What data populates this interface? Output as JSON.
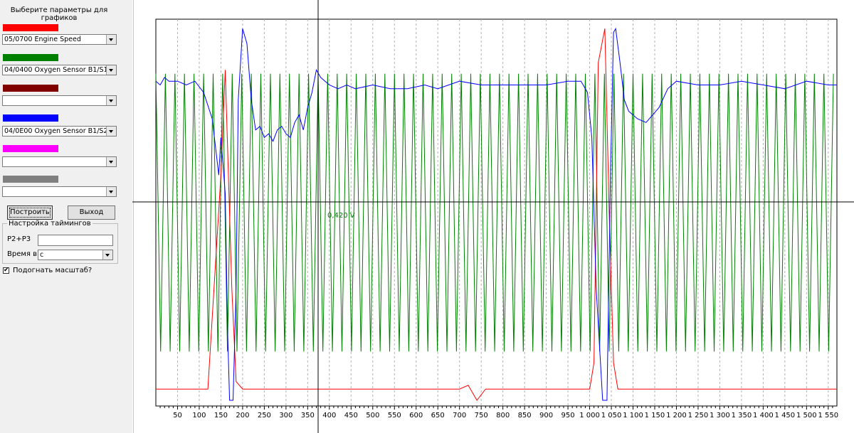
{
  "panel": {
    "title": "Выберите параметры для графиков",
    "params": [
      {
        "color": "#ff0000",
        "value": "05/0700 Engine Speed"
      },
      {
        "color": "#008000",
        "value": "04/0400 Oxygen Sensor B1/S1"
      },
      {
        "color": "#800000",
        "value": ""
      },
      {
        "color": "#0000ff",
        "value": "04/0E00 Oxygen Sensor B1/S2"
      },
      {
        "color": "#ff00ff",
        "value": ""
      },
      {
        "color": "#808080",
        "value": ""
      }
    ],
    "build_button": "Построить",
    "exit_button": "Выход",
    "timings": {
      "title": "Настройка таймингов",
      "p2p3_label": "P2+P3",
      "p2p3_value": "",
      "time_label": "Время в",
      "time_value": "с"
    },
    "fit_scale": {
      "label": "Подогнать масштаб?",
      "checked": true
    }
  },
  "chart_data": {
    "type": "line",
    "xlim": [
      0,
      1570
    ],
    "x_ticks": [
      "50",
      "100",
      "150",
      "200",
      "250",
      "300",
      "350",
      "400",
      "450",
      "500",
      "550",
      "600",
      "650",
      "700",
      "750",
      "800",
      "850",
      "900",
      "950",
      "1 000",
      "1 050",
      "1 100",
      "1 150",
      "1 200",
      "1 250",
      "1 300",
      "1 350",
      "1 400",
      "1 450",
      "1 500",
      "1 550"
    ],
    "cursor_label": "0,420 V",
    "grid": "vertical dashed",
    "series": [
      {
        "name": "05/0700 Engine Speed",
        "color": "#ff0000",
        "points": [
          [
            0,
            0.03
          ],
          [
            100,
            0.03
          ],
          [
            120,
            0.03
          ],
          [
            150,
            0.6
          ],
          [
            160,
            0.88
          ],
          [
            175,
            0.3
          ],
          [
            185,
            0.05
          ],
          [
            200,
            0.03
          ],
          [
            300,
            0.03
          ],
          [
            500,
            0.03
          ],
          [
            700,
            0.03
          ],
          [
            720,
            0.04
          ],
          [
            740,
            0.0
          ],
          [
            760,
            0.03
          ],
          [
            900,
            0.03
          ],
          [
            1000,
            0.03
          ],
          [
            1010,
            0.1
          ],
          [
            1020,
            0.9
          ],
          [
            1035,
            0.99
          ],
          [
            1045,
            0.5
          ],
          [
            1055,
            0.1
          ],
          [
            1065,
            0.03
          ],
          [
            1200,
            0.03
          ],
          [
            1400,
            0.03
          ],
          [
            1570,
            0.03
          ]
        ]
      },
      {
        "name": "04/0E00 Oxygen Sensor B1/S2",
        "color": "#0000ff",
        "points": [
          [
            0,
            0.85
          ],
          [
            10,
            0.84
          ],
          [
            20,
            0.86
          ],
          [
            30,
            0.85
          ],
          [
            50,
            0.85
          ],
          [
            70,
            0.84
          ],
          [
            90,
            0.85
          ],
          [
            110,
            0.82
          ],
          [
            130,
            0.75
          ],
          [
            145,
            0.6
          ],
          [
            150,
            0.7
          ],
          [
            160,
            0.55
          ],
          [
            165,
            0.2
          ],
          [
            170,
            0.0
          ],
          [
            178,
            0.0
          ],
          [
            185,
            0.3
          ],
          [
            190,
            0.8
          ],
          [
            200,
            0.99
          ],
          [
            210,
            0.95
          ],
          [
            220,
            0.8
          ],
          [
            230,
            0.72
          ],
          [
            240,
            0.73
          ],
          [
            250,
            0.7
          ],
          [
            260,
            0.71
          ],
          [
            270,
            0.69
          ],
          [
            280,
            0.72
          ],
          [
            290,
            0.73
          ],
          [
            300,
            0.71
          ],
          [
            310,
            0.7
          ],
          [
            320,
            0.74
          ],
          [
            330,
            0.76
          ],
          [
            340,
            0.72
          ],
          [
            350,
            0.78
          ],
          [
            360,
            0.82
          ],
          [
            370,
            0.88
          ],
          [
            380,
            0.86
          ],
          [
            400,
            0.84
          ],
          [
            420,
            0.83
          ],
          [
            440,
            0.84
          ],
          [
            460,
            0.83
          ],
          [
            500,
            0.84
          ],
          [
            540,
            0.83
          ],
          [
            580,
            0.83
          ],
          [
            620,
            0.84
          ],
          [
            650,
            0.83
          ],
          [
            700,
            0.85
          ],
          [
            750,
            0.84
          ],
          [
            800,
            0.84
          ],
          [
            850,
            0.84
          ],
          [
            900,
            0.84
          ],
          [
            950,
            0.85
          ],
          [
            980,
            0.85
          ],
          [
            995,
            0.82
          ],
          [
            1005,
            0.7
          ],
          [
            1015,
            0.3
          ],
          [
            1030,
            0.0
          ],
          [
            1040,
            0.0
          ],
          [
            1048,
            0.6
          ],
          [
            1055,
            0.98
          ],
          [
            1060,
            0.99
          ],
          [
            1070,
            0.9
          ],
          [
            1080,
            0.8
          ],
          [
            1090,
            0.77
          ],
          [
            1110,
            0.75
          ],
          [
            1130,
            0.74
          ],
          [
            1160,
            0.78
          ],
          [
            1180,
            0.83
          ],
          [
            1200,
            0.85
          ],
          [
            1250,
            0.84
          ],
          [
            1300,
            0.84
          ],
          [
            1350,
            0.85
          ],
          [
            1400,
            0.84
          ],
          [
            1450,
            0.83
          ],
          [
            1500,
            0.85
          ],
          [
            1550,
            0.84
          ],
          [
            1570,
            0.84
          ]
        ]
      },
      {
        "name": "04/0400 Oxygen Sensor B1/S1",
        "color": "#008000",
        "oscillation": {
          "start": 0,
          "end": 1570,
          "period": 22,
          "high": 0.87,
          "low": 0.13
        }
      }
    ]
  }
}
